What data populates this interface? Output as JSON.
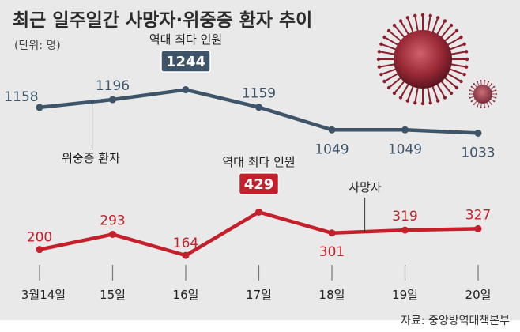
{
  "header": {
    "title": "최근 일주일간 사망자·위중증 환자 추이",
    "unit": "(단위: 명)"
  },
  "source": "자료: 중앙방역대책본부",
  "chart_data": {
    "type": "line",
    "categories": [
      "3월14일",
      "15일",
      "16일",
      "17일",
      "18일",
      "19일",
      "20일"
    ],
    "series": [
      {
        "name": "위중증 환자",
        "values": [
          1158,
          1196,
          1244,
          1159,
          1049,
          1049,
          1033
        ],
        "color": "#3e5469"
      },
      {
        "name": "사망자",
        "values": [
          200,
          293,
          164,
          429,
          301,
          319,
          327
        ],
        "color": "#c41f2a"
      }
    ],
    "annotations": [
      {
        "series": "위중증 환자",
        "index": 2,
        "text": "역대 최다 인원",
        "badge_color": "#3e5469"
      },
      {
        "series": "사망자",
        "index": 3,
        "text": "역대 최다 인원",
        "badge_color": "#c41f2a"
      }
    ],
    "background_color": "#e9e9e9",
    "grid": false
  }
}
